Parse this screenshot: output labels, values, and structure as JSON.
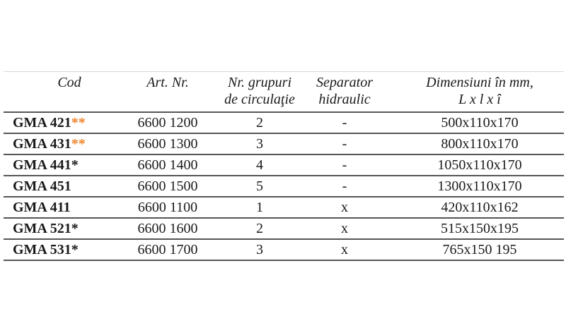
{
  "headers": {
    "cod": "Cod",
    "art": "Art. Nr.",
    "grupuri_1": "Nr. grupuri",
    "grupuri_2": "de circulaţie",
    "sep_1": "Separator",
    "sep_2": "hidraulic",
    "dim_1": "Dimensiuni în mm,",
    "dim_2": "L x l x î"
  },
  "accent_color": "#f0852d",
  "rows": [
    {
      "cod": "GMA 421",
      "mark": "**",
      "mark_color": "orange",
      "art": "6600 1200",
      "grupuri": "2",
      "sep": "-",
      "dim": "500x110x170"
    },
    {
      "cod": "GMA 431",
      "mark": "**",
      "mark_color": "orange",
      "art": "6600 1300",
      "grupuri": "3",
      "sep": "-",
      "dim": "800x110x170"
    },
    {
      "cod": "GMA 441",
      "mark": "*",
      "mark_color": "black",
      "art": "6600 1400",
      "grupuri": "4",
      "sep": "-",
      "dim": "1050x110x170"
    },
    {
      "cod": "GMA 451",
      "mark": "",
      "mark_color": "black",
      "art": "6600 1500",
      "grupuri": "5",
      "sep": "-",
      "dim": "1300x110x170"
    },
    {
      "cod": "GMA 411",
      "mark": "",
      "mark_color": "black",
      "art": "6600 1100",
      "grupuri": "1",
      "sep": "x",
      "dim": "420x110x162"
    },
    {
      "cod": "GMA 521",
      "mark": "*",
      "mark_color": "black",
      "art": "6600 1600",
      "grupuri": "2",
      "sep": "x",
      "dim": "515x150x195"
    },
    {
      "cod": "GMA 531",
      "mark": "*",
      "mark_color": "black",
      "art": "6600 1700",
      "grupuri": "3",
      "sep": "x",
      "dim": "765x150 195"
    }
  ]
}
